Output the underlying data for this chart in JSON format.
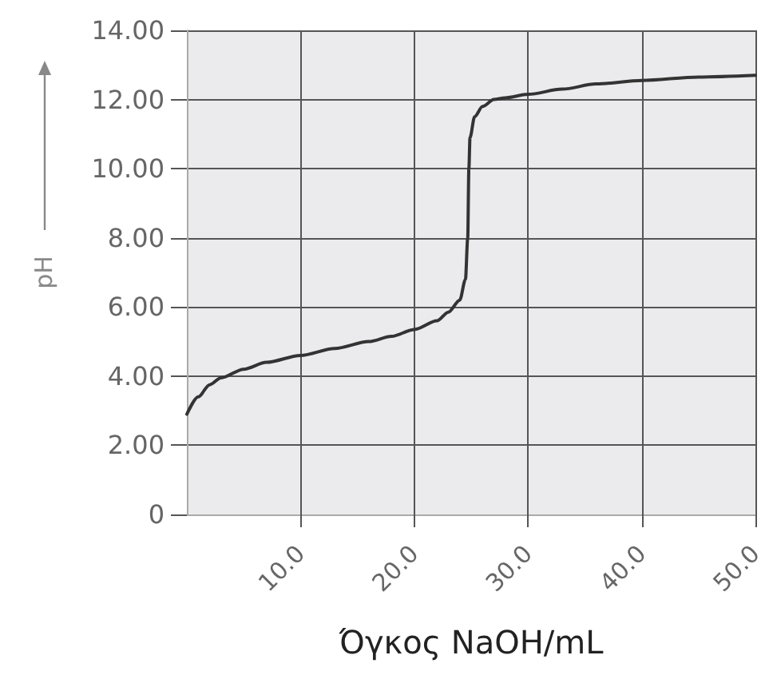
{
  "chart_data": {
    "type": "line",
    "xlabel": "Όγκος NaOH/mL",
    "ylabel": "pH",
    "x": [
      0,
      1,
      2,
      3,
      5,
      7,
      10,
      13,
      16,
      18,
      20,
      22,
      23,
      24,
      24.5,
      24.7,
      24.8,
      24.9,
      25.3,
      26,
      27,
      28,
      30,
      33,
      36,
      40,
      45,
      50
    ],
    "series": [
      {
        "color": "#333333",
        "values": [
          2.9,
          3.4,
          3.75,
          3.95,
          4.2,
          4.4,
          4.6,
          4.8,
          5.0,
          5.15,
          5.35,
          5.6,
          5.85,
          6.2,
          6.8,
          8.0,
          10.0,
          10.9,
          11.5,
          11.8,
          12.0,
          12.05,
          12.15,
          12.3,
          12.45,
          12.55,
          12.65,
          12.7
        ]
      }
    ],
    "xlim": [
      0,
      50
    ],
    "xticks": [
      {
        "value": 10,
        "label": "10.0"
      },
      {
        "value": 20,
        "label": "20.0"
      },
      {
        "value": 30,
        "label": "30.0"
      },
      {
        "value": 40,
        "label": "40.0"
      },
      {
        "value": 50,
        "label": "50.0"
      }
    ],
    "ylim": [
      0,
      14
    ],
    "yticks": [
      0,
      {
        "value": 2,
        "label": "2.00"
      },
      {
        "value": 4,
        "label": "4.00"
      },
      {
        "value": 6,
        "label": "6.00"
      },
      {
        "value": 8,
        "label": "8.00"
      },
      {
        "value": 10,
        "label": "10.00"
      },
      {
        "value": 12,
        "label": "12.00"
      },
      {
        "value": 14,
        "label": "14.00"
      }
    ],
    "grid": true,
    "marker": "none",
    "line_style": "solid"
  }
}
